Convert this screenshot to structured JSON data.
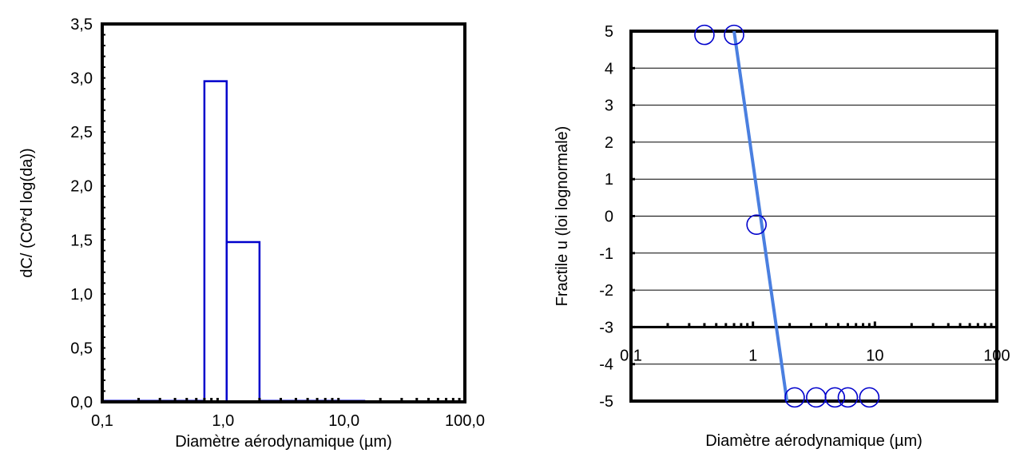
{
  "chart_data": [
    {
      "type": "bar",
      "xscale": "log",
      "xlabel": "Diamètre aérodynamique (µm)",
      "ylabel": "dC/ (C0*d log(da))",
      "xlim": [
        0.1,
        100
      ],
      "ylim": [
        0,
        3.5
      ],
      "xticks": [
        {
          "value": 0.1,
          "label": "0,1"
        },
        {
          "value": 1,
          "label": "1,0"
        },
        {
          "value": 10,
          "label": "10,0"
        },
        {
          "value": 100,
          "label": "100,0"
        }
      ],
      "yticks": [
        {
          "value": 0,
          "label": "0,0"
        },
        {
          "value": 0.5,
          "label": "0,5"
        },
        {
          "value": 1,
          "label": "1,0"
        },
        {
          "value": 1.5,
          "label": "1,5"
        },
        {
          "value": 2,
          "label": "2,0"
        },
        {
          "value": 2.5,
          "label": "2,5"
        },
        {
          "value": 3,
          "label": "3,0"
        },
        {
          "value": 3.5,
          "label": "3,5"
        }
      ],
      "grid": false,
      "color": "#0000cc",
      "bins": [
        {
          "x0": 0.1,
          "x1": 0.7,
          "value": 0
        },
        {
          "x0": 0.7,
          "x1": 1.07,
          "value": 2.97
        },
        {
          "x0": 1.07,
          "x1": 2.0,
          "value": 1.48
        },
        {
          "x0": 2.0,
          "x1": 15,
          "value": 0
        }
      ]
    },
    {
      "type": "scatter",
      "xscale": "log",
      "xlabel": "Diamètre aérodynamique (µm)",
      "ylabel": "Fractile u (loi lognormale)",
      "xlim": [
        0.1,
        100
      ],
      "ylim": [
        -5,
        5
      ],
      "xaxis_crosses_y": -3,
      "xticks": [
        {
          "value": 0.1,
          "label": "0,1"
        },
        {
          "value": 1,
          "label": "1"
        },
        {
          "value": 10,
          "label": "10"
        },
        {
          "value": 100,
          "label": "100"
        }
      ],
      "yticks": [
        {
          "value": -5,
          "label": "-5"
        },
        {
          "value": -4,
          "label": "-4"
        },
        {
          "value": -3,
          "label": "-3"
        },
        {
          "value": -2,
          "label": "-2"
        },
        {
          "value": -1,
          "label": "-1"
        },
        {
          "value": 0,
          "label": "0"
        },
        {
          "value": 1,
          "label": "1"
        },
        {
          "value": 2,
          "label": "2"
        },
        {
          "value": 3,
          "label": "3"
        },
        {
          "value": 4,
          "label": "4"
        },
        {
          "value": 5,
          "label": "5"
        }
      ],
      "grid": true,
      "marker_color": "#0000cc",
      "line_color": "#4a7fe0",
      "points": [
        {
          "x": 0.4,
          "y": 4.9
        },
        {
          "x": 0.7,
          "y": 4.9
        },
        {
          "x": 1.07,
          "y": -0.23
        },
        {
          "x": 2.2,
          "y": -4.9
        },
        {
          "x": 3.3,
          "y": -4.9
        },
        {
          "x": 4.7,
          "y": -4.9
        },
        {
          "x": 6.0,
          "y": -4.9
        },
        {
          "x": 9.0,
          "y": -4.9
        }
      ],
      "fit_line": [
        {
          "x": 0.7,
          "y": 5
        },
        {
          "x": 1.9,
          "y": -5
        }
      ]
    }
  ]
}
